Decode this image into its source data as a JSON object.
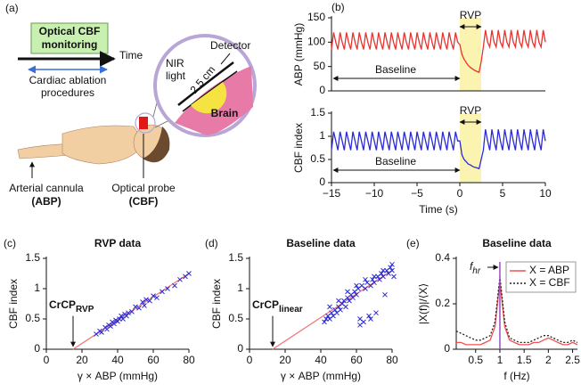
{
  "diagram": {
    "label": "(a)",
    "monitoring": [
      "Optical CBF",
      "monitoring"
    ],
    "time": "Time",
    "procedures": [
      "Cardiac ablation",
      "procedures"
    ],
    "detector": "Detector",
    "nir": [
      "NIR",
      "light"
    ],
    "distance": "2.5 cm",
    "brain": "Brain",
    "cannula": "Arterial cannula",
    "cannula_target": "(ABP)",
    "probe": "Optical probe",
    "probe_target": "(CBF)"
  },
  "chart_data": [
    {
      "type": "line",
      "label": "(b)",
      "ylabel": "ABP (mmHg)",
      "xlim": [
        -15,
        10
      ],
      "ylim": [
        0,
        150
      ],
      "yticks": [
        0,
        50,
        100,
        150
      ],
      "shade": [
        0,
        2.5
      ],
      "shade_color": "#fbf3b0",
      "rvp_label": "RVP",
      "baseline_label": "Baseline",
      "x": [
        -15,
        -14.75,
        -14.5,
        -14.25,
        -14,
        -13.75,
        -13.5,
        -13.25,
        -13,
        -12.75,
        -12.5,
        -12.25,
        -12,
        -11.75,
        -11.5,
        -11.25,
        -11,
        -10.75,
        -10.5,
        -10.25,
        -10,
        -9.75,
        -9.5,
        -9.25,
        -9,
        -8.75,
        -8.5,
        -8.25,
        -8,
        -7.75,
        -7.5,
        -7.25,
        -7,
        -6.75,
        -6.5,
        -6.25,
        -6,
        -5.75,
        -5.5,
        -5.25,
        -5,
        -4.75,
        -4.5,
        -4.25,
        -4,
        -3.75,
        -3.5,
        -3.25,
        -3,
        -2.75,
        -2.5,
        -2.25,
        -2,
        -1.75,
        -1.5,
        -1.25,
        -1,
        -0.75,
        -0.5,
        -0.25,
        0,
        0.25,
        0.5,
        0.75,
        1,
        1.25,
        1.5,
        1.75,
        2,
        2.25,
        2.5,
        2.75,
        3,
        3.25,
        3.5,
        3.75,
        4,
        4.25,
        4.5,
        4.75,
        5,
        5.25,
        5.5,
        5.75,
        6,
        6.25,
        6.5,
        6.75,
        7,
        7.25,
        7.5,
        7.75,
        8,
        8.25,
        8.5,
        8.75,
        9,
        9.25,
        9.5,
        9.75,
        10
      ],
      "series": [
        {
          "color": "#e8332f",
          "values": [
            85,
            120,
            100,
            85,
            120,
            100,
            85,
            120,
            100,
            85,
            120,
            100,
            85,
            120,
            100,
            85,
            120,
            100,
            85,
            120,
            100,
            85,
            120,
            100,
            85,
            120,
            100,
            85,
            120,
            100,
            85,
            120,
            100,
            85,
            120,
            100,
            85,
            120,
            100,
            85,
            120,
            100,
            85,
            120,
            100,
            85,
            120,
            100,
            85,
            120,
            100,
            85,
            120,
            100,
            85,
            120,
            100,
            85,
            120,
            100,
            95,
            75,
            65,
            58,
            52,
            48,
            45,
            42,
            40,
            38,
            60,
            90,
            125,
            100,
            90,
            125,
            100,
            90,
            125,
            100,
            90,
            125,
            100,
            90,
            125,
            100,
            90,
            125,
            100,
            90,
            125,
            100,
            90,
            125,
            100,
            90,
            125,
            100,
            90,
            125,
            100
          ]
        }
      ]
    },
    {
      "type": "line",
      "ylabel": "CBF index",
      "xlabel": "Time (s)",
      "xlim": [
        -15,
        10
      ],
      "xticks": [
        {
          "value": -15,
          "label": "−15"
        },
        {
          "value": -10,
          "label": "−10"
        },
        {
          "value": -5,
          "label": "−5"
        },
        0,
        5,
        10
      ],
      "ylim": [
        0,
        1.5
      ],
      "yticks": [
        0,
        0.5,
        1,
        1.5
      ],
      "shade": [
        0,
        2.5
      ],
      "shade_color": "#fbf3b0",
      "rvp_label": "RVP",
      "baseline_label": "Baseline",
      "x": [
        -15,
        -14.75,
        -14.5,
        -14.25,
        -14,
        -13.75,
        -13.5,
        -13.25,
        -13,
        -12.75,
        -12.5,
        -12.25,
        -12,
        -11.75,
        -11.5,
        -11.25,
        -11,
        -10.75,
        -10.5,
        -10.25,
        -10,
        -9.75,
        -9.5,
        -9.25,
        -9,
        -8.75,
        -8.5,
        -8.25,
        -8,
        -7.75,
        -7.5,
        -7.25,
        -7,
        -6.75,
        -6.5,
        -6.25,
        -6,
        -5.75,
        -5.5,
        -5.25,
        -5,
        -4.75,
        -4.5,
        -4.25,
        -4,
        -3.75,
        -3.5,
        -3.25,
        -3,
        -2.75,
        -2.5,
        -2.25,
        -2,
        -1.75,
        -1.5,
        -1.25,
        -1,
        -0.75,
        -0.5,
        -0.25,
        0,
        0.25,
        0.5,
        0.75,
        1,
        1.25,
        1.5,
        1.75,
        2,
        2.25,
        2.5,
        2.75,
        3,
        3.25,
        3.5,
        3.75,
        4,
        4.25,
        4.5,
        4.75,
        5,
        5.25,
        5.5,
        5.75,
        6,
        6.25,
        6.5,
        6.75,
        7,
        7.25,
        7.5,
        7.75,
        8,
        8.25,
        8.5,
        8.75,
        9,
        9.25,
        9.5,
        9.75,
        10
      ],
      "series": [
        {
          "color": "#2b2bd6",
          "values": [
            0.7,
            1.1,
            0.9,
            0.7,
            1.1,
            0.9,
            0.7,
            1.1,
            0.9,
            0.7,
            1.1,
            0.9,
            0.7,
            1.1,
            0.9,
            0.7,
            1.1,
            0.9,
            0.7,
            1.1,
            0.9,
            0.7,
            1.1,
            0.9,
            0.7,
            1.1,
            0.9,
            0.7,
            1.1,
            0.9,
            0.7,
            1.1,
            0.9,
            0.7,
            1.1,
            0.9,
            0.7,
            1.1,
            0.9,
            0.7,
            1.1,
            0.9,
            0.7,
            1.1,
            0.9,
            0.7,
            1.1,
            0.9,
            0.7,
            1.1,
            0.9,
            0.7,
            1.1,
            0.9,
            0.7,
            1.1,
            0.9,
            0.7,
            1.1,
            0.9,
            0.9,
            0.6,
            0.5,
            0.45,
            0.4,
            0.38,
            0.35,
            0.33,
            0.32,
            0.3,
            0.5,
            0.7,
            1.15,
            0.9,
            0.7,
            1.15,
            0.9,
            0.7,
            1.15,
            0.9,
            0.7,
            1.15,
            0.9,
            0.7,
            1.15,
            0.9,
            0.7,
            1.15,
            0.9,
            0.7,
            1.15,
            0.9,
            0.7,
            1.15,
            0.9,
            0.7,
            1.15,
            0.9,
            0.7,
            1.15,
            0.9
          ]
        }
      ]
    },
    {
      "type": "scatter",
      "label": "(c)",
      "title": "RVP data",
      "ylabel": "CBF index",
      "xlabel": "γ × ABP (mmHg)",
      "xlim": [
        0,
        80
      ],
      "xticks": [
        0,
        20,
        40,
        60,
        80
      ],
      "ylim": [
        0,
        1.5
      ],
      "yticks": [
        0,
        0.5,
        1,
        1.5
      ],
      "color": "#2b2bd6",
      "x": [
        28,
        30,
        31,
        33,
        34,
        35,
        36,
        37,
        38,
        39,
        40,
        41,
        42,
        43,
        44,
        45,
        46,
        48,
        50,
        52,
        54,
        55,
        56,
        58,
        60,
        62,
        65,
        68,
        72,
        75,
        78,
        80
      ],
      "values": [
        0.25,
        0.3,
        0.28,
        0.36,
        0.33,
        0.4,
        0.38,
        0.45,
        0.42,
        0.48,
        0.46,
        0.5,
        0.55,
        0.5,
        0.58,
        0.55,
        0.6,
        0.62,
        0.7,
        0.68,
        0.78,
        0.72,
        0.82,
        0.8,
        0.88,
        0.85,
        0.95,
        1.0,
        1.05,
        1.15,
        1.2,
        1.25
      ],
      "fit": {
        "x": [
          15,
          80
        ],
        "values": [
          0,
          1.25
        ],
        "color": "#f07878"
      },
      "crcp": {
        "text": "CrCP",
        "sub": "RVP"
      }
    },
    {
      "type": "scatter",
      "label": "(d)",
      "title": "Baseline data",
      "ylabel": "CBF index",
      "xlabel": "γ × ABP (mmHg)",
      "xlim": [
        0,
        80
      ],
      "xticks": [
        0,
        20,
        40,
        60,
        80
      ],
      "ylim": [
        0,
        1.5
      ],
      "yticks": [
        0,
        0.5,
        1,
        1.5
      ],
      "color": "#2b2bd6",
      "x": [
        42,
        43,
        44,
        45,
        46,
        47,
        48,
        49,
        50,
        51,
        52,
        53,
        54,
        55,
        56,
        57,
        58,
        59,
        60,
        61,
        62,
        63,
        64,
        65,
        66,
        67,
        68,
        69,
        70,
        71,
        72,
        73,
        74,
        75,
        76,
        77,
        78,
        79,
        80,
        81,
        45,
        50,
        55,
        60,
        65,
        70,
        75,
        80,
        62,
        68
      ],
      "values": [
        0.45,
        0.5,
        0.55,
        0.5,
        0.6,
        0.55,
        0.65,
        0.6,
        0.7,
        0.65,
        0.75,
        0.8,
        0.7,
        0.85,
        0.8,
        0.9,
        0.85,
        0.95,
        0.9,
        1.0,
        0.5,
        1.05,
        0.45,
        1.0,
        1.1,
        0.55,
        1.05,
        1.15,
        1.1,
        0.6,
        1.2,
        1.15,
        1.25,
        1.2,
        0.9,
        1.3,
        1.25,
        1.35,
        1.3,
        1.2,
        0.7,
        0.8,
        0.95,
        1.05,
        1.15,
        1.2,
        1.3,
        1.4,
        0.4,
        0.5
      ],
      "fit": {
        "x": [
          13,
          80
        ],
        "values": [
          0,
          1.3
        ],
        "color": "#f07878"
      },
      "crcp": {
        "text": "CrCP",
        "sub": "linear"
      }
    },
    {
      "type": "line",
      "label": "(e)",
      "title": "Baseline data",
      "ylabel": "|X(f)|/⟨X⟩",
      "xlabel": "f (Hz)",
      "xlim": [
        0.1,
        2.6
      ],
      "xticks": [
        0.5,
        1,
        1.5,
        2,
        2.5
      ],
      "ylim": [
        0,
        0.4
      ],
      "yticks": [
        0,
        0.2,
        0.4
      ],
      "legend": "upper right",
      "marker_x": 1,
      "marker_color": "#9b4fc0",
      "marker_text": "f",
      "marker_sub": "hr",
      "x": [
        0.1,
        0.2,
        0.3,
        0.4,
        0.5,
        0.6,
        0.7,
        0.8,
        0.9,
        1,
        1.1,
        1.2,
        1.3,
        1.4,
        1.5,
        1.6,
        1.7,
        1.8,
        1.9,
        2,
        2.1,
        2.2,
        2.3,
        2.4,
        2.5,
        2.6
      ],
      "series": [
        {
          "name": "X = ABP",
          "color": "#f05050",
          "values": [
            0.03,
            0.03,
            0.02,
            0.02,
            0.02,
            0.02,
            0.03,
            0.04,
            0.1,
            0.3,
            0.1,
            0.04,
            0.03,
            0.02,
            0.02,
            0.02,
            0.03,
            0.03,
            0.04,
            0.05,
            0.04,
            0.03,
            0.02,
            0.02,
            0.03,
            0.02
          ]
        },
        {
          "name": "X = CBF",
          "color": "#222222",
          "dash": true,
          "values": [
            0.08,
            0.07,
            0.06,
            0.05,
            0.04,
            0.04,
            0.05,
            0.06,
            0.12,
            0.32,
            0.12,
            0.05,
            0.04,
            0.03,
            0.03,
            0.03,
            0.04,
            0.05,
            0.06,
            0.06,
            0.05,
            0.04,
            0.03,
            0.03,
            0.04,
            0.03
          ]
        }
      ]
    }
  ]
}
